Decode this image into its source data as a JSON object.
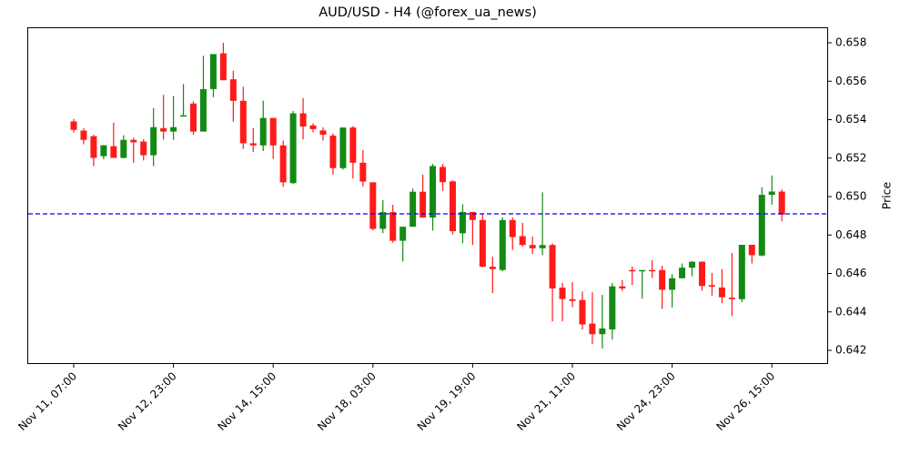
{
  "chart_data": {
    "type": "candlestick",
    "title": "AUD/USD - H4 (@forex_ua_news)",
    "xlabel": "",
    "ylabel": "Price",
    "ylim": [
      0.6413,
      0.659
    ],
    "y_ticks": [
      "0.642",
      "0.644",
      "0.646",
      "0.648",
      "0.650",
      "0.652",
      "0.654",
      "0.656",
      "0.658"
    ],
    "x_ticks": [
      {
        "index": 0,
        "label": "Nov 11, 07:00"
      },
      {
        "index": 10,
        "label": "Nov 12, 23:00"
      },
      {
        "index": 20,
        "label": "Nov 14, 15:00"
      },
      {
        "index": 30,
        "label": "Nov 18, 03:00"
      },
      {
        "index": 40,
        "label": "Nov 19, 19:00"
      },
      {
        "index": 50,
        "label": "Nov 21, 11:00"
      },
      {
        "index": 60,
        "label": "Nov 24, 23:00"
      },
      {
        "index": 70,
        "label": "Nov 26, 15:00"
      }
    ],
    "y_axis_position": "right",
    "grid": false,
    "up_color": "#138a13",
    "down_color": "#ff1a1a",
    "reference_line": {
      "value": 0.6491,
      "color": "#0000ff",
      "style": "dashed"
    },
    "candles": [
      {
        "o": 0.65391,
        "h": 0.65404,
        "l": 0.65333,
        "c": 0.65347
      },
      {
        "o": 0.65343,
        "h": 0.65356,
        "l": 0.65272,
        "c": 0.65295
      },
      {
        "o": 0.65314,
        "h": 0.65322,
        "l": 0.65158,
        "c": 0.65201
      },
      {
        "o": 0.6521,
        "h": 0.65267,
        "l": 0.65194,
        "c": 0.65267
      },
      {
        "o": 0.65262,
        "h": 0.65385,
        "l": 0.65201,
        "c": 0.65201
      },
      {
        "o": 0.65201,
        "h": 0.65319,
        "l": 0.65199,
        "c": 0.65295
      },
      {
        "o": 0.65295,
        "h": 0.65306,
        "l": 0.65176,
        "c": 0.65282
      },
      {
        "o": 0.65286,
        "h": 0.65298,
        "l": 0.65188,
        "c": 0.65215
      },
      {
        "o": 0.65215,
        "h": 0.6546,
        "l": 0.65158,
        "c": 0.65361
      },
      {
        "o": 0.65356,
        "h": 0.65529,
        "l": 0.65296,
        "c": 0.65338
      },
      {
        "o": 0.65338,
        "h": 0.65523,
        "l": 0.65295,
        "c": 0.65361
      },
      {
        "o": 0.65423,
        "h": 0.65585,
        "l": 0.65423,
        "c": 0.65423
      },
      {
        "o": 0.65484,
        "h": 0.65496,
        "l": 0.65321,
        "c": 0.65338
      },
      {
        "o": 0.65338,
        "h": 0.65732,
        "l": 0.65338,
        "c": 0.65559
      },
      {
        "o": 0.65559,
        "h": 0.65736,
        "l": 0.65517,
        "c": 0.65741
      },
      {
        "o": 0.65745,
        "h": 0.658,
        "l": 0.6562,
        "c": 0.65605
      },
      {
        "o": 0.6561,
        "h": 0.65654,
        "l": 0.65389,
        "c": 0.65498
      },
      {
        "o": 0.65498,
        "h": 0.65571,
        "l": 0.65248,
        "c": 0.65277
      },
      {
        "o": 0.65277,
        "h": 0.65356,
        "l": 0.65232,
        "c": 0.65266
      },
      {
        "o": 0.65266,
        "h": 0.65499,
        "l": 0.65237,
        "c": 0.65409
      },
      {
        "o": 0.65409,
        "h": 0.65409,
        "l": 0.65196,
        "c": 0.65266
      },
      {
        "o": 0.65266,
        "h": 0.65291,
        "l": 0.6505,
        "c": 0.65074
      },
      {
        "o": 0.6507,
        "h": 0.65445,
        "l": 0.65065,
        "c": 0.65433
      },
      {
        "o": 0.65433,
        "h": 0.65512,
        "l": 0.65297,
        "c": 0.65364
      },
      {
        "o": 0.6537,
        "h": 0.65381,
        "l": 0.65334,
        "c": 0.65351
      },
      {
        "o": 0.65344,
        "h": 0.6536,
        "l": 0.65291,
        "c": 0.65322
      },
      {
        "o": 0.65317,
        "h": 0.65328,
        "l": 0.65114,
        "c": 0.65148
      },
      {
        "o": 0.65148,
        "h": 0.65359,
        "l": 0.6514,
        "c": 0.65359
      },
      {
        "o": 0.65359,
        "h": 0.65367,
        "l": 0.65094,
        "c": 0.65176
      },
      {
        "o": 0.65176,
        "h": 0.65243,
        "l": 0.65053,
        "c": 0.65078
      },
      {
        "o": 0.65074,
        "h": 0.64969,
        "l": 0.64824,
        "c": 0.64832
      },
      {
        "o": 0.64832,
        "h": 0.64981,
        "l": 0.6481,
        "c": 0.64919
      },
      {
        "o": 0.64919,
        "h": 0.64957,
        "l": 0.6476,
        "c": 0.6477
      },
      {
        "o": 0.6477,
        "h": 0.64788,
        "l": 0.64662,
        "c": 0.64843
      },
      {
        "o": 0.64843,
        "h": 0.65041,
        "l": 0.64843,
        "c": 0.65025
      },
      {
        "o": 0.65025,
        "h": 0.65114,
        "l": 0.64889,
        "c": 0.64891
      },
      {
        "o": 0.64891,
        "h": 0.6517,
        "l": 0.64823,
        "c": 0.65159
      },
      {
        "o": 0.65154,
        "h": 0.6517,
        "l": 0.65029,
        "c": 0.65075
      },
      {
        "o": 0.65079,
        "h": 0.65084,
        "l": 0.64803,
        "c": 0.6482
      },
      {
        "o": 0.64809,
        "h": 0.6496,
        "l": 0.64758,
        "c": 0.6492
      },
      {
        "o": 0.6492,
        "h": 0.6492,
        "l": 0.64748,
        "c": 0.64878
      },
      {
        "o": 0.64878,
        "h": 0.64913,
        "l": 0.64632,
        "c": 0.64635
      },
      {
        "o": 0.64635,
        "h": 0.64687,
        "l": 0.64497,
        "c": 0.64623
      },
      {
        "o": 0.64618,
        "h": 0.64891,
        "l": 0.64612,
        "c": 0.64878
      },
      {
        "o": 0.64878,
        "h": 0.64891,
        "l": 0.64722,
        "c": 0.64789
      },
      {
        "o": 0.64794,
        "h": 0.64863,
        "l": 0.6474,
        "c": 0.64748
      },
      {
        "o": 0.64748,
        "h": 0.64792,
        "l": 0.64701,
        "c": 0.64731
      },
      {
        "o": 0.64731,
        "h": 0.65022,
        "l": 0.64695,
        "c": 0.64748
      },
      {
        "o": 0.64748,
        "h": 0.64756,
        "l": 0.64351,
        "c": 0.64522
      },
      {
        "o": 0.64526,
        "h": 0.64551,
        "l": 0.64351,
        "c": 0.64467
      },
      {
        "o": 0.64466,
        "h": 0.64554,
        "l": 0.64425,
        "c": 0.64457
      },
      {
        "o": 0.64462,
        "h": 0.64506,
        "l": 0.64308,
        "c": 0.64335
      },
      {
        "o": 0.64339,
        "h": 0.64502,
        "l": 0.64234,
        "c": 0.64284
      },
      {
        "o": 0.64284,
        "h": 0.64488,
        "l": 0.6421,
        "c": 0.64314
      },
      {
        "o": 0.64309,
        "h": 0.64551,
        "l": 0.64257,
        "c": 0.64533
      },
      {
        "o": 0.64533,
        "h": 0.64566,
        "l": 0.64509,
        "c": 0.64522
      },
      {
        "o": 0.64618,
        "h": 0.64637,
        "l": 0.6454,
        "c": 0.64613
      },
      {
        "o": 0.64613,
        "h": 0.64615,
        "l": 0.64469,
        "c": 0.64618
      },
      {
        "o": 0.64618,
        "h": 0.64669,
        "l": 0.64577,
        "c": 0.64613
      },
      {
        "o": 0.64618,
        "h": 0.6464,
        "l": 0.64416,
        "c": 0.64515
      },
      {
        "o": 0.64515,
        "h": 0.64596,
        "l": 0.64423,
        "c": 0.64575
      },
      {
        "o": 0.64575,
        "h": 0.64652,
        "l": 0.64575,
        "c": 0.6463
      },
      {
        "o": 0.6463,
        "h": 0.64663,
        "l": 0.64585,
        "c": 0.64661
      },
      {
        "o": 0.64661,
        "h": 0.64663,
        "l": 0.64511,
        "c": 0.64535
      },
      {
        "o": 0.64539,
        "h": 0.64603,
        "l": 0.64485,
        "c": 0.64531
      },
      {
        "o": 0.64527,
        "h": 0.64623,
        "l": 0.64445,
        "c": 0.64476
      },
      {
        "o": 0.64474,
        "h": 0.64706,
        "l": 0.64378,
        "c": 0.64466
      },
      {
        "o": 0.64466,
        "h": 0.64749,
        "l": 0.64451,
        "c": 0.64749
      },
      {
        "o": 0.64749,
        "h": 0.64749,
        "l": 0.64652,
        "c": 0.64695
      },
      {
        "o": 0.64693,
        "h": 0.65048,
        "l": 0.64689,
        "c": 0.65009
      },
      {
        "o": 0.65009,
        "h": 0.6511,
        "l": 0.64958,
        "c": 0.65026
      },
      {
        "o": 0.65026,
        "h": 0.65037,
        "l": 0.64871,
        "c": 0.64906
      }
    ]
  }
}
